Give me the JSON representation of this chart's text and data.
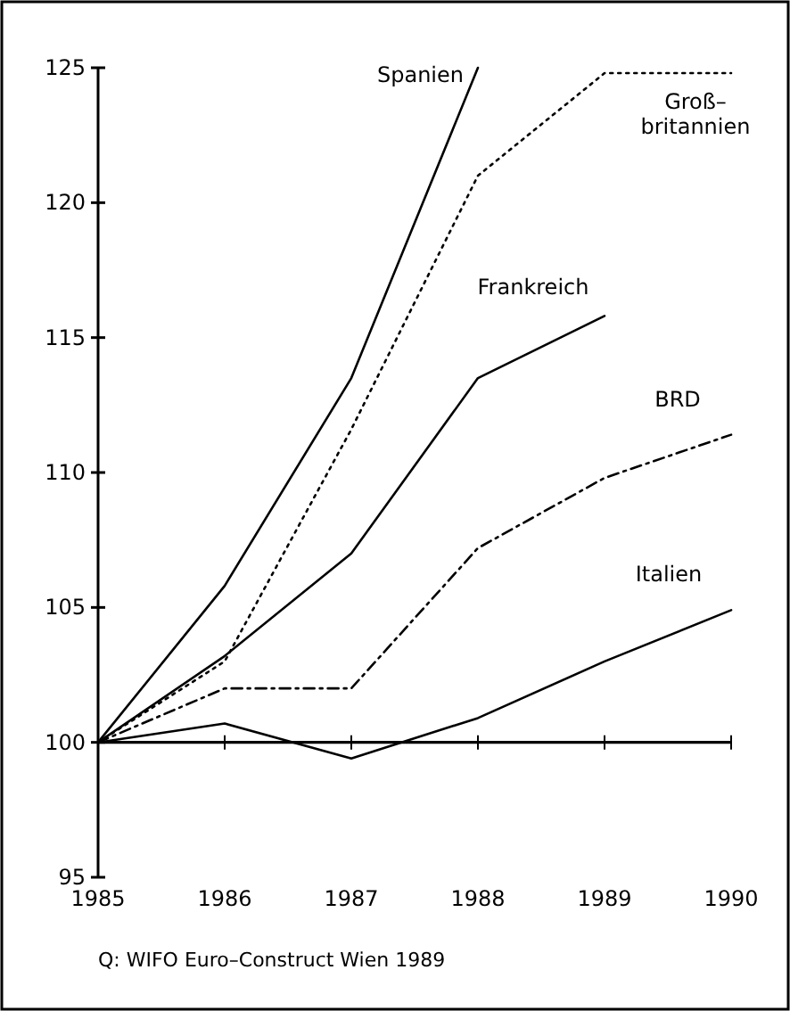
{
  "chart_data": {
    "type": "line",
    "x": [
      1985,
      1986,
      1987,
      1988,
      1989,
      1990
    ],
    "xlim": [
      1985,
      1990
    ],
    "xticks": [
      1985,
      1986,
      1987,
      1988,
      1989,
      1990
    ],
    "ylim": [
      95,
      125
    ],
    "yticks": [
      95,
      100,
      105,
      110,
      115,
      120,
      125
    ],
    "grid": false,
    "marker": "none",
    "series": [
      {
        "name": "Spanien",
        "color": "#000000",
        "line_style": "solid",
        "values": [
          100,
          105.8,
          113.5,
          125,
          null,
          null
        ]
      },
      {
        "name": "Groß–\nbritannien",
        "color": "#000000",
        "line_style": "dotted",
        "values": [
          100,
          103,
          111.6,
          121,
          124.8,
          124.8
        ]
      },
      {
        "name": "Frankreich",
        "color": "#000000",
        "line_style": "solid",
        "values": [
          100,
          103.2,
          107,
          113.5,
          115.8,
          null
        ]
      },
      {
        "name": "BRD",
        "color": "#000000",
        "line_style": "dashed",
        "values": [
          100,
          102,
          102,
          107.2,
          109.8,
          111.4
        ]
      },
      {
        "name": "Italien",
        "color": "#000000",
        "line_style": "solid",
        "values": [
          100,
          100.7,
          99.4,
          100.9,
          103,
          104.9
        ]
      }
    ],
    "ref_lines": [
      {
        "axis": "y",
        "value": 100,
        "color": "#000000",
        "line_style": "solid"
      }
    ],
    "annotations": [
      "Q: WIFO  Euro–Construct  Wien 1989"
    ]
  }
}
